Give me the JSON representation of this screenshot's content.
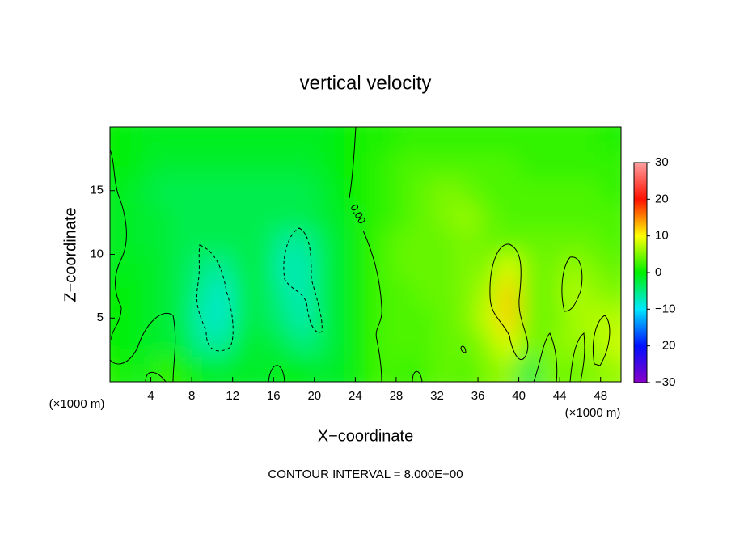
{
  "chart_data": {
    "type": "contour",
    "title": "vertical velocity",
    "xlabel": "X−coordinate",
    "ylabel": "Z−coordinate",
    "x_unit_label": "(×1000 m)",
    "z_unit_label": "(×1000 m)",
    "footer": "CONTOUR INTERVAL = 8.000E+00",
    "contour_label": "0.00",
    "xlim": [
      0,
      50
    ],
    "ylim": [
      0,
      20
    ],
    "xticks": [
      4,
      8,
      12,
      16,
      20,
      24,
      28,
      32,
      36,
      40,
      44,
      48
    ],
    "yticks": [
      5,
      10,
      15
    ],
    "clim": [
      -30,
      30
    ],
    "cticks": [
      {
        "value": -30,
        "label": "−30"
      },
      {
        "value": -20,
        "label": "−20"
      },
      {
        "value": -10,
        "label": "−10"
      },
      0,
      10,
      20,
      30
    ],
    "colorscale": [
      [
        -30,
        "#8a00c8"
      ],
      [
        -20,
        "#0010ff"
      ],
      [
        -10,
        "#00e8ff"
      ],
      [
        0,
        "#00f000"
      ],
      [
        10,
        "#ffff00"
      ],
      [
        20,
        "#ff1000"
      ],
      [
        30,
        "#ffa0a0"
      ]
    ],
    "z": [
      [
        1,
        -1,
        2,
        1,
        -1,
        -2,
        -1,
        -2,
        0,
        -1,
        -2,
        -1,
        1,
        3,
        2,
        3,
        4,
        3,
        5,
        6,
        -3,
        5,
        4,
        5,
        6
      ],
      [
        0,
        -1,
        -2,
        -2,
        -6,
        -6,
        -2,
        -2,
        -3,
        -5,
        -3,
        -1,
        1,
        3,
        3,
        3,
        4,
        4,
        6,
        9,
        4,
        5,
        6,
        6,
        8
      ],
      [
        0,
        -1,
        -2,
        -3,
        -7,
        -8,
        -3,
        -3,
        -5,
        -7,
        -3,
        -1,
        1,
        3,
        3,
        3,
        4,
        5,
        8,
        12,
        5,
        4,
        6,
        7,
        7
      ],
      [
        0,
        -1,
        -2,
        -3,
        -6,
        -8,
        -3,
        -3,
        -6,
        -7,
        -3,
        -1,
        1,
        3,
        3,
        4,
        4,
        5,
        7,
        12,
        5,
        4,
        7,
        6,
        5
      ],
      [
        -1,
        -1,
        -2,
        -3,
        -5,
        -6,
        -3,
        -3,
        -7,
        -7,
        -3,
        -1,
        1,
        3,
        4,
        4,
        4,
        5,
        5,
        9,
        5,
        4,
        6,
        5,
        4
      ],
      [
        -1,
        -2,
        -2,
        -3,
        -3,
        -3,
        -3,
        -3,
        -6,
        -6,
        -3,
        -1,
        1,
        3,
        4,
        4,
        4,
        5,
        4,
        4,
        4,
        4,
        4,
        4,
        3
      ],
      [
        -1,
        -2,
        -2,
        -3,
        -3,
        -3,
        -3,
        -3,
        -3,
        -3,
        -2,
        -1,
        1,
        2,
        3,
        4,
        5,
        6,
        4,
        3,
        3,
        3,
        3,
        3,
        3
      ],
      [
        -1,
        -2,
        -3,
        -3,
        -3,
        -3,
        -3,
        -3,
        -3,
        -3,
        -2,
        0,
        1,
        2,
        3,
        4,
        5,
        4,
        3,
        3,
        3,
        3,
        3,
        3,
        2
      ],
      [
        0,
        -1,
        -2,
        -2,
        -2,
        -2,
        -2,
        -2,
        -2,
        -2,
        -1,
        0,
        1,
        2,
        3,
        3,
        3,
        3,
        3,
        3,
        2,
        2,
        2,
        2,
        2
      ],
      [
        0,
        -1,
        -1,
        -1,
        -1,
        -1,
        -1,
        -1,
        -1,
        -1,
        -1,
        0,
        1,
        1,
        2,
        2,
        2,
        2,
        2,
        2,
        2,
        2,
        2,
        2,
        1
      ]
    ]
  }
}
